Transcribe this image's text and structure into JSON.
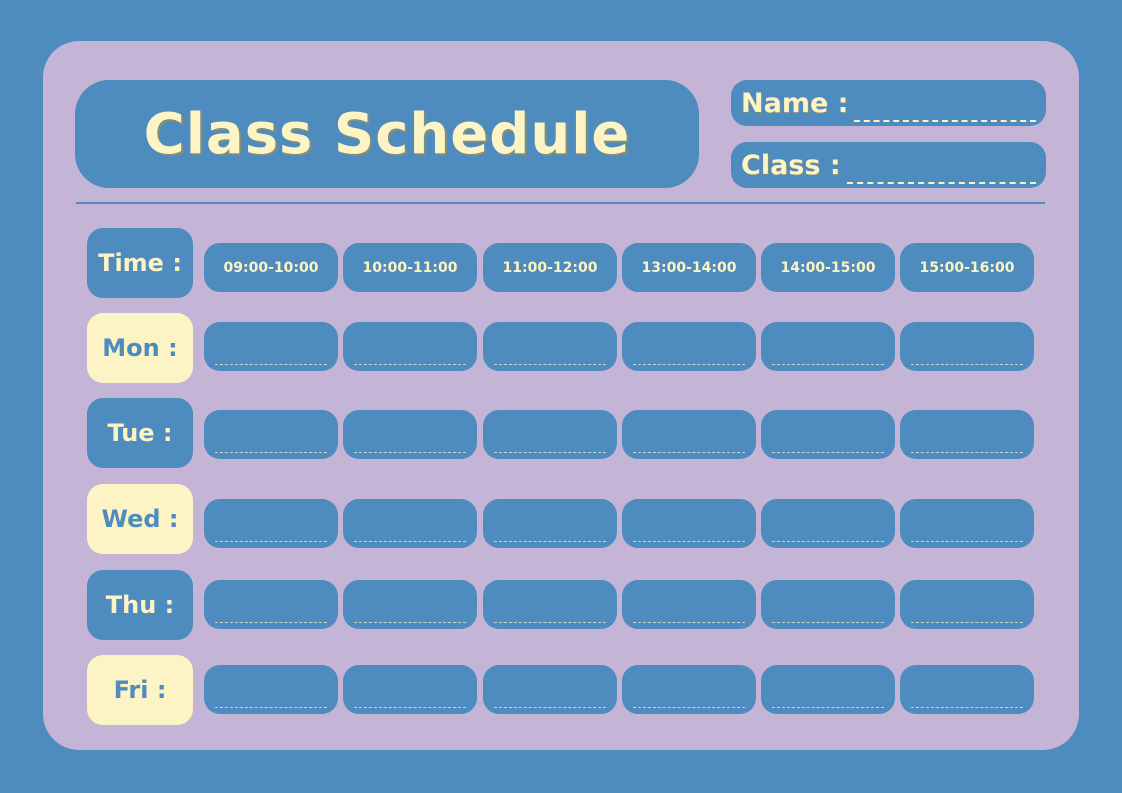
{
  "title": "Class Schedule",
  "fields": {
    "name": {
      "label": "Name :",
      "value": ""
    },
    "class": {
      "label": "Class :",
      "value": ""
    }
  },
  "time_label": "Time :",
  "times": [
    "09:00-10:00",
    "10:00-11:00",
    "11:00-12:00",
    "13:00-14:00",
    "14:00-15:00",
    "15:00-16:00"
  ],
  "days": [
    {
      "label": "Mon :",
      "style": "cream",
      "cells": [
        "",
        "",
        "",
        "",
        "",
        ""
      ]
    },
    {
      "label": "Tue :",
      "style": "blue",
      "cells": [
        "",
        "",
        "",
        "",
        "",
        ""
      ]
    },
    {
      "label": "Wed :",
      "style": "cream",
      "cells": [
        "",
        "",
        "",
        "",
        "",
        ""
      ]
    },
    {
      "label": "Thu :",
      "style": "blue",
      "cells": [
        "",
        "",
        "",
        "",
        "",
        ""
      ]
    },
    {
      "label": "Fri :",
      "style": "cream",
      "cells": [
        "",
        "",
        "",
        "",
        "",
        ""
      ]
    }
  ],
  "colors": {
    "background": "#4e8bbf",
    "card": "#c4b4d6",
    "cream": "#fdf4c6"
  }
}
